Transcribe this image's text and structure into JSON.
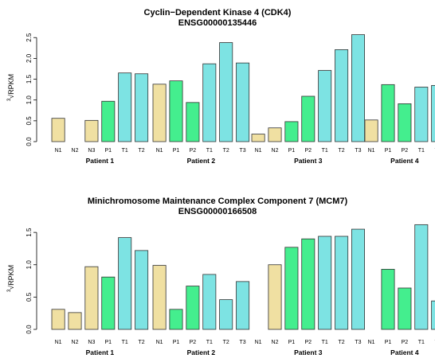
{
  "colors": {
    "N": "#F0E0A2",
    "P": "#44EE8E",
    "T": "#7DE3E3",
    "stroke": "#333333"
  },
  "chart_data": [
    {
      "type": "bar",
      "title": "Cyclin−Dependent Kinase 4 (CDK4)",
      "subtitle": "ENSG00000135446",
      "ylabel": "√RPKM",
      "ylabel_root": "3",
      "ylim": [
        0,
        2.6
      ],
      "yticks": [
        0.0,
        0.5,
        1.0,
        1.5,
        2.0,
        2.5
      ],
      "ytick_labels": [
        "0.0",
        "0.5",
        "1.0",
        "1.5",
        "2.0",
        "2.5"
      ],
      "grid": false,
      "groups": [
        {
          "label": "Patient 1",
          "categories": [
            "N1",
            "N2",
            "N3",
            "P1",
            "T1",
            "T2"
          ],
          "values": [
            0.56,
            0.0,
            0.51,
            0.97,
            1.65,
            1.63
          ]
        },
        {
          "label": "Patient 2",
          "categories": [
            "N1",
            "P1",
            "P2",
            "T1",
            "T2",
            "T3"
          ],
          "values": [
            1.38,
            1.46,
            0.94,
            1.87,
            2.38,
            1.89
          ]
        },
        {
          "label": "Patient 3",
          "categories": [
            "N1",
            "N2",
            "P1",
            "P2",
            "T1",
            "T2",
            "T3"
          ],
          "values": [
            0.18,
            0.33,
            0.48,
            1.09,
            1.71,
            2.21,
            2.57
          ]
        },
        {
          "label": "Patient 4",
          "categories": [
            "N1",
            "P1",
            "P2",
            "T1",
            "T2"
          ],
          "values": [
            0.52,
            1.37,
            0.91,
            1.31,
            1.35
          ]
        }
      ]
    },
    {
      "type": "bar",
      "title": "Minichromosome Maintenance Complex Component 7 (MCM7)",
      "subtitle": "ENSG00000166508",
      "ylabel": "√RPKM",
      "ylabel_root": "3",
      "ylim": [
        0,
        1.6
      ],
      "yticks": [
        0.0,
        0.5,
        1.0,
        1.5
      ],
      "ytick_labels": [
        "0.0",
        "0.5",
        "1.0",
        "1.5"
      ],
      "grid": false,
      "groups": [
        {
          "label": "Patient 1",
          "categories": [
            "N1",
            "N2",
            "N3",
            "P1",
            "T1",
            "T2"
          ],
          "values": [
            0.31,
            0.26,
            0.97,
            0.81,
            1.42,
            1.22
          ]
        },
        {
          "label": "Patient 2",
          "categories": [
            "N1",
            "P1",
            "P2",
            "T1",
            "T2",
            "T3"
          ],
          "values": [
            0.99,
            0.31,
            0.67,
            0.85,
            0.46,
            0.74
          ]
        },
        {
          "label": "Patient 3",
          "categories": [
            "N1",
            "N2",
            "P1",
            "P2",
            "T1",
            "T2",
            "T3"
          ],
          "values": [
            0.0,
            1.0,
            1.27,
            1.4,
            1.44,
            1.44,
            1.55
          ]
        },
        {
          "label": "Patient 4",
          "categories": [
            "N1",
            "P1",
            "P2",
            "T1",
            "T2"
          ],
          "values": [
            0.0,
            0.93,
            0.64,
            1.62,
            0.44
          ]
        }
      ]
    }
  ]
}
